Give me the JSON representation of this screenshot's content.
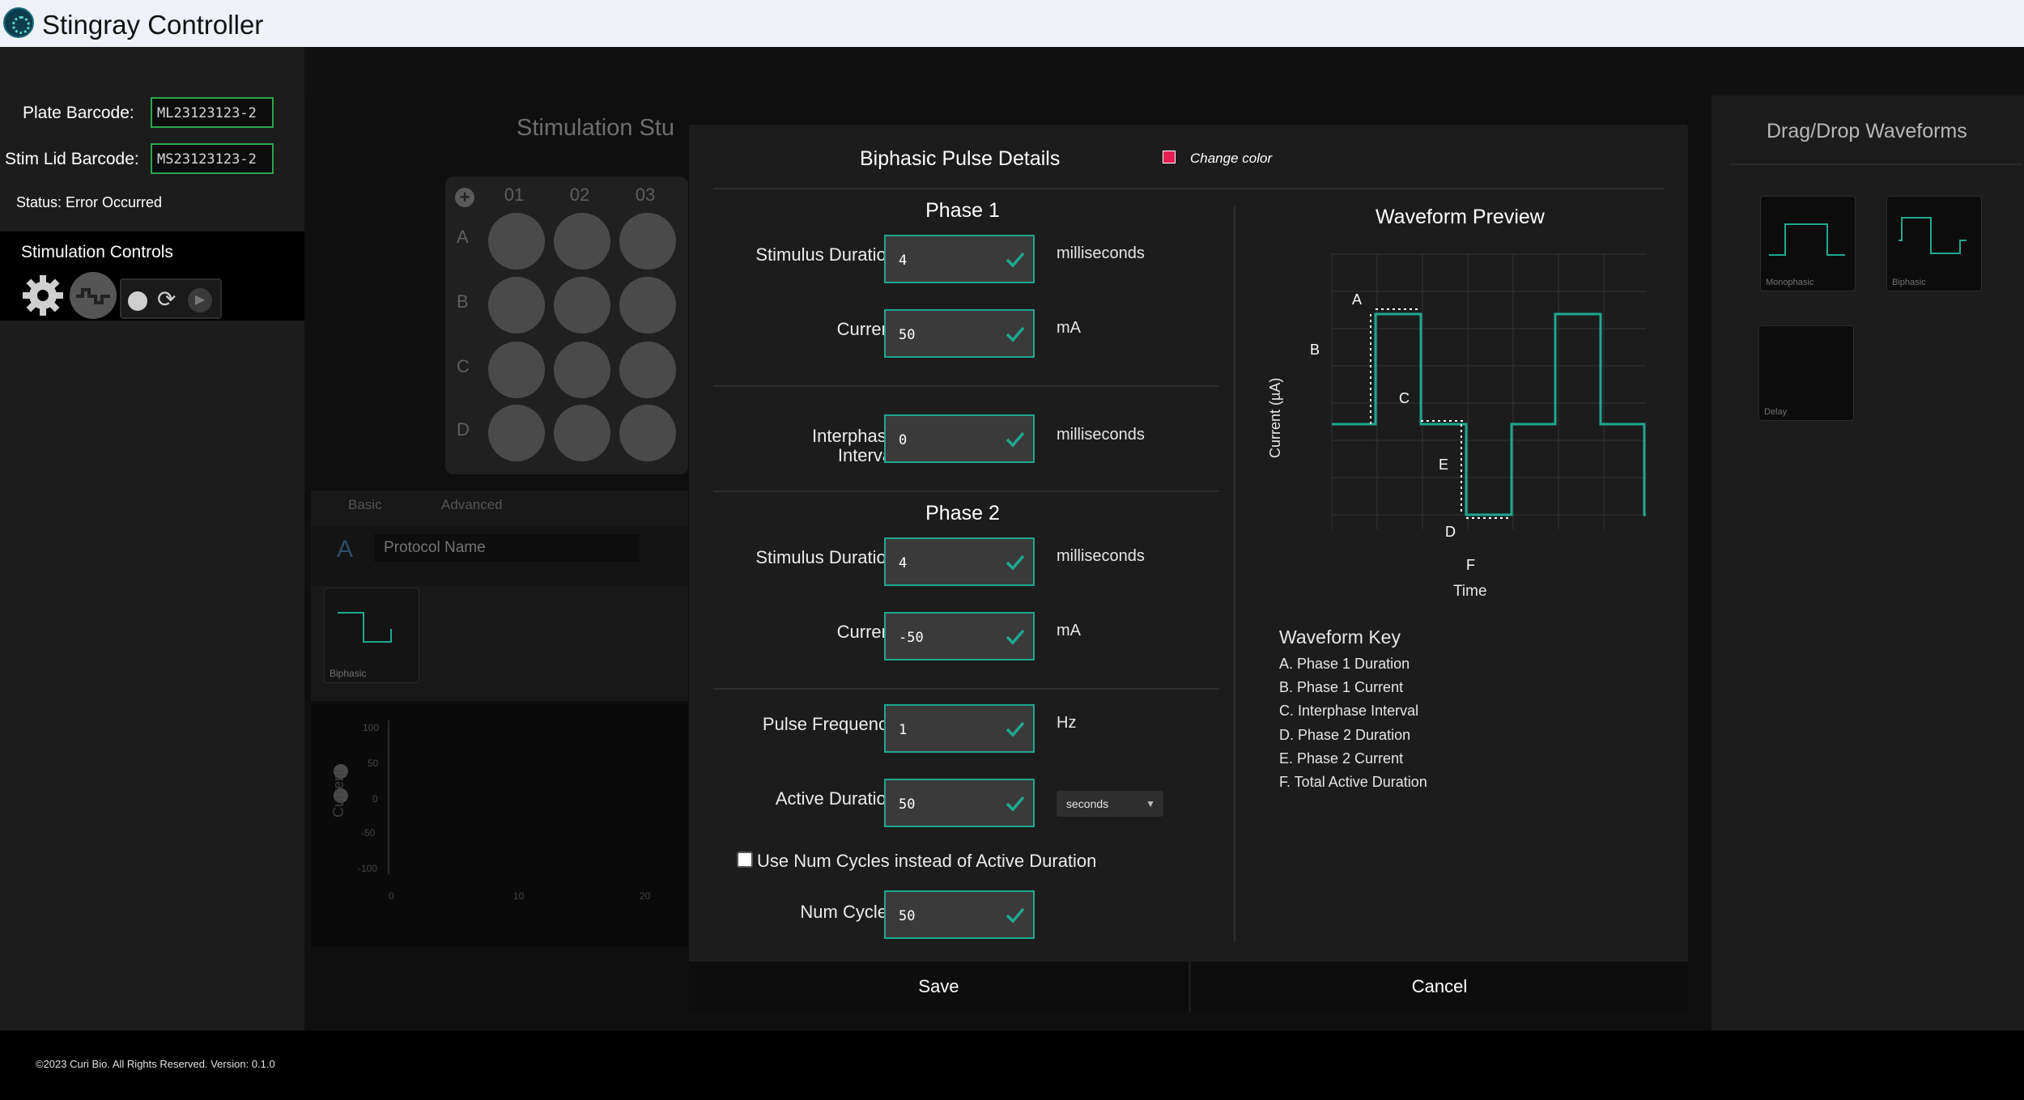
{
  "app": {
    "title": "Stingray Controller"
  },
  "sidebar": {
    "plate_barcode_label": "Plate Barcode:",
    "plate_barcode_value": "ML23123123-2",
    "stim_lid_label": "Stim Lid Barcode:",
    "stim_lid_value": "MS23123123-2",
    "status": "Status: Error Occurred",
    "controls_label": "Stimulation Controls",
    "icons": [
      "gear-icon",
      "stimulation-icon",
      "record-icon",
      "refresh-icon",
      "play-icon"
    ]
  },
  "main": {
    "studio_title": "Stimulation Stu",
    "plate": {
      "columns": [
        "01",
        "02",
        "03"
      ],
      "rows": [
        "A",
        "B",
        "C",
        "D"
      ]
    },
    "tabs": [
      "Basic",
      "Advanced"
    ],
    "protocol_letter": "A",
    "protocol_placeholder": "Protocol Name",
    "protocol_card_label": "Biphasic",
    "mini_chart": {
      "yticks": [
        "100",
        "50",
        "0",
        "-50",
        "-100"
      ],
      "xticks": [
        "0",
        "10",
        "20"
      ],
      "ylabel": "Current"
    }
  },
  "right_panel": {
    "title": "Drag/Drop Waveforms",
    "cards": [
      "Monophasic",
      "Biphasic",
      "Delay"
    ]
  },
  "modal": {
    "title": "Biphasic Pulse Details",
    "change_color": "Change color",
    "pulse_color": "#e61d52",
    "accent_color": "#1ea890",
    "phase1": {
      "heading": "Phase 1",
      "duration_label": "Stimulus Duration",
      "duration_value": "4",
      "duration_unit": "milliseconds",
      "current_label": "Current",
      "current_value": "50",
      "current_unit": "mA"
    },
    "interphase": {
      "label_line1": "Interphase",
      "label_line2": "Interval",
      "value": "0",
      "unit": "milliseconds"
    },
    "phase2": {
      "heading": "Phase 2",
      "duration_label": "Stimulus Duration",
      "duration_value": "4",
      "duration_unit": "milliseconds",
      "current_label": "Current",
      "current_value": "-50",
      "current_unit": "mA"
    },
    "pulse_frequency": {
      "label": "Pulse Frequency",
      "value": "1",
      "unit": "Hz"
    },
    "active_duration": {
      "label": "Active Duration",
      "value": "50",
      "unit_selected": "seconds"
    },
    "num_cycles_toggle": {
      "label": "Use Num Cycles instead of Active Duration",
      "checked": false
    },
    "num_cycles": {
      "label": "Num Cycles",
      "value": "50"
    },
    "preview": {
      "title": "Waveform Preview",
      "xlabel": "Time",
      "ylabel": "Current (µA)",
      "markers": [
        "A",
        "B",
        "C",
        "D",
        "E",
        "F"
      ]
    },
    "key": {
      "title": "Waveform Key",
      "items": [
        "A. Phase 1 Duration",
        "B. Phase 1 Current",
        "C. Interphase Interval",
        "D. Phase 2 Duration",
        "E. Phase 2 Current",
        "F. Total Active Duration"
      ]
    },
    "save_label": "Save",
    "cancel_label": "Cancel"
  },
  "footer": {
    "text": "©2023 Curi Bio. All Rights Reserved. Version: 0.1.0"
  }
}
